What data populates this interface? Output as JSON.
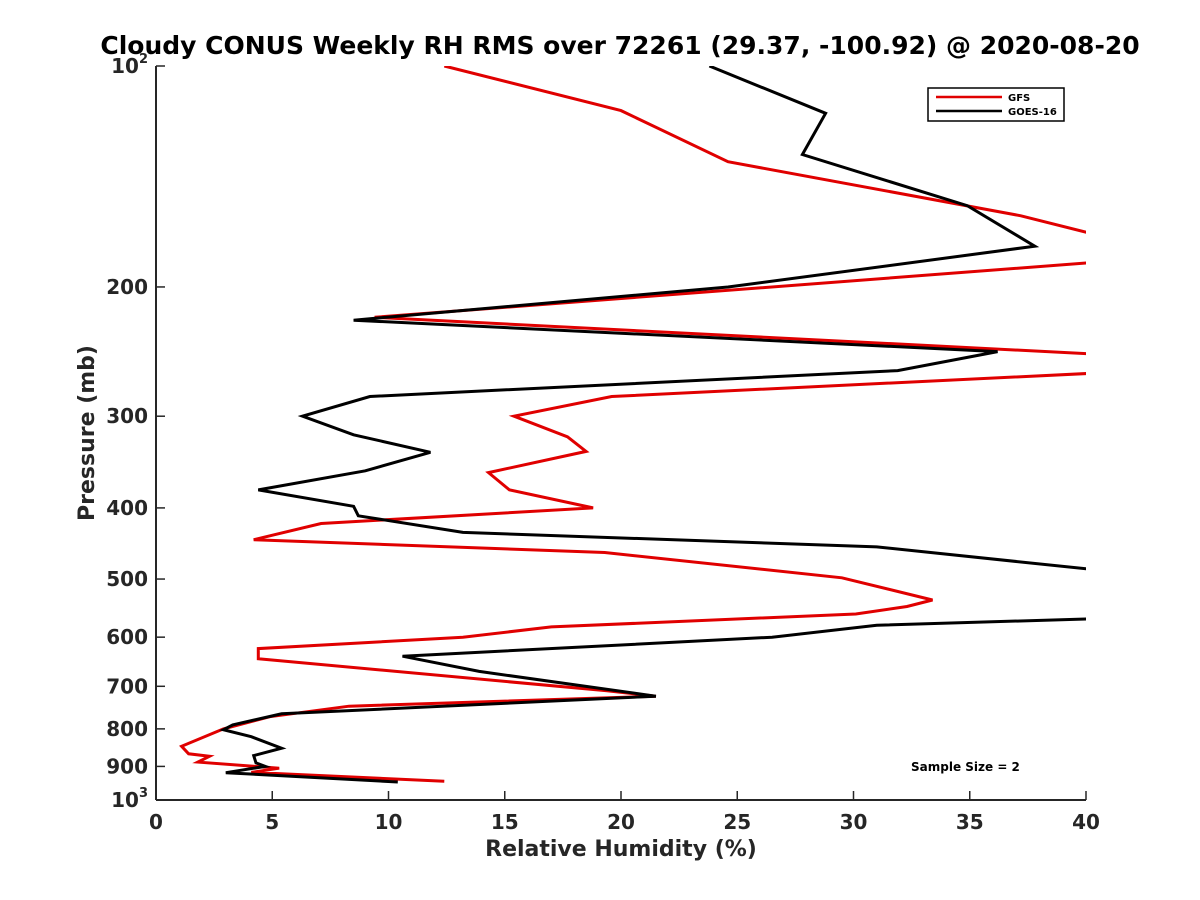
{
  "chart_data": {
    "type": "line",
    "title": "Cloudy CONUS Weekly RH RMS over 72261 (29.37, -100.92) @ 2020-08-20",
    "xlabel": "Relative Humidity (%)",
    "ylabel": "Pressure (mb)",
    "xlim": [
      0,
      40
    ],
    "ylim": [
      100,
      1000
    ],
    "y_scale": "log",
    "y_reversed": true,
    "grid": false,
    "legend_position": "top-right",
    "x_ticks": [
      {
        "value": 0,
        "label": "0"
      },
      {
        "value": 5,
        "label": "5"
      },
      {
        "value": 10,
        "label": "10"
      },
      {
        "value": 15,
        "label": "15"
      },
      {
        "value": 20,
        "label": "20"
      },
      {
        "value": 25,
        "label": "25"
      },
      {
        "value": 30,
        "label": "30"
      },
      {
        "value": 35,
        "label": "35"
      },
      {
        "value": 40,
        "label": "40"
      }
    ],
    "y_ticks": [
      {
        "value": 100,
        "base": "10",
        "exp": "2"
      },
      {
        "value": 200,
        "label": "200"
      },
      {
        "value": 300,
        "label": "300"
      },
      {
        "value": 400,
        "label": "400"
      },
      {
        "value": 500,
        "label": "500"
      },
      {
        "value": 600,
        "label": "600"
      },
      {
        "value": 700,
        "label": "700"
      },
      {
        "value": 800,
        "label": "800"
      },
      {
        "value": 900,
        "label": "900"
      },
      {
        "value": 1000,
        "base": "10",
        "exp": "3"
      }
    ],
    "series": [
      {
        "name": "GFS",
        "color": "#e00000",
        "points": [
          [
            12.4,
            100
          ],
          [
            20,
            115
          ],
          [
            24.6,
            135
          ],
          [
            37.2,
            160
          ],
          [
            40.5,
            170
          ],
          [
            40.5,
            185
          ],
          [
            9.4,
            220
          ],
          [
            40.5,
            247
          ],
          [
            40.5,
            262
          ],
          [
            19.6,
            282
          ],
          [
            15.4,
            300
          ],
          [
            17.7,
            320
          ],
          [
            18.5,
            335
          ],
          [
            14.3,
            358
          ],
          [
            15.2,
            378
          ],
          [
            18.8,
            400
          ],
          [
            7.1,
            420
          ],
          [
            4.2,
            442
          ],
          [
            19.3,
            460
          ],
          [
            29.5,
            498
          ],
          [
            33.4,
            534
          ],
          [
            32.3,
            545
          ],
          [
            30.1,
            558
          ],
          [
            17,
            581
          ],
          [
            13.2,
            600
          ],
          [
            4.4,
            622
          ],
          [
            4.4,
            642
          ],
          [
            19.4,
            710
          ],
          [
            21.5,
            722
          ],
          [
            8.3,
            745
          ],
          [
            4.9,
            770
          ],
          [
            2.9,
            800
          ],
          [
            1.1,
            845
          ],
          [
            1.4,
            865
          ],
          [
            2.3,
            872
          ],
          [
            1.8,
            888
          ],
          [
            5.3,
            905
          ],
          [
            4.1,
            917
          ],
          [
            12.4,
            943
          ]
        ]
      },
      {
        "name": "GOES-16",
        "color": "#000000",
        "points": [
          [
            23.8,
            100
          ],
          [
            28.8,
            116
          ],
          [
            27.8,
            132
          ],
          [
            34.9,
            155
          ],
          [
            37.8,
            176
          ],
          [
            24.6,
            200
          ],
          [
            8.5,
            222
          ],
          [
            36.2,
            245
          ],
          [
            31.9,
            260
          ],
          [
            9.2,
            282
          ],
          [
            6.3,
            300
          ],
          [
            8.5,
            318
          ],
          [
            11.8,
            336
          ],
          [
            9,
            356
          ],
          [
            4.4,
            378
          ],
          [
            8.5,
            398
          ],
          [
            8.7,
            410
          ],
          [
            13.2,
            432
          ],
          [
            31,
            452
          ],
          [
            40.5,
            486
          ],
          [
            40.5,
            566
          ],
          [
            31,
            578
          ],
          [
            26.5,
            600
          ],
          [
            10.6,
            637
          ],
          [
            13.9,
            668
          ],
          [
            21.5,
            722
          ],
          [
            5.4,
            763
          ],
          [
            3.3,
            790
          ],
          [
            2.9,
            802
          ],
          [
            4.1,
            820
          ],
          [
            5.4,
            850
          ],
          [
            4.2,
            870
          ],
          [
            4.3,
            890
          ],
          [
            4.7,
            900
          ],
          [
            3,
            918
          ],
          [
            10.4,
            945
          ]
        ]
      }
    ],
    "annotations": [
      "Sample Size = 2"
    ]
  }
}
